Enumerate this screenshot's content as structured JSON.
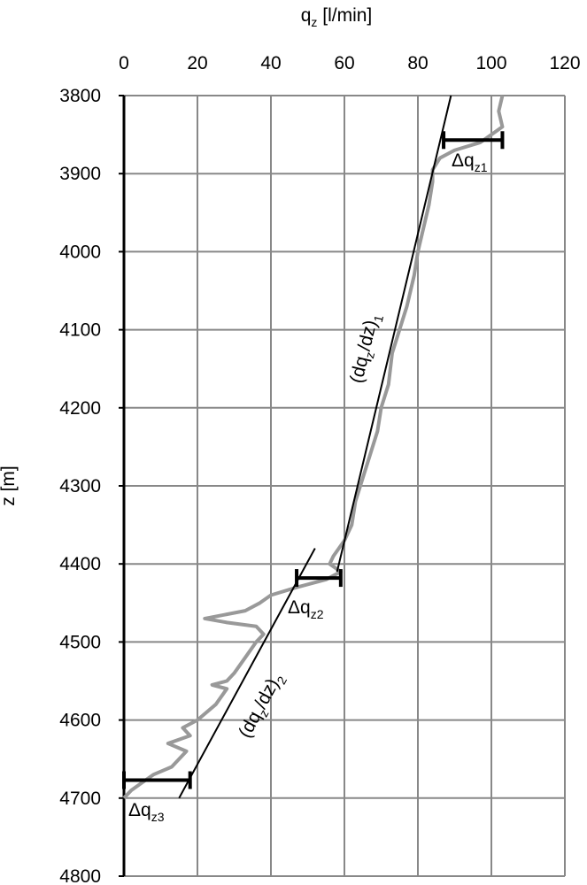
{
  "chart_data": {
    "type": "line",
    "x_title": [
      {
        "text": "q"
      },
      {
        "text": "z",
        "sub": true
      },
      {
        "text": " [l/min]"
      }
    ],
    "y_title": "z [m]",
    "xlim": [
      0,
      120
    ],
    "xticks": [
      0,
      20,
      40,
      60,
      80,
      100,
      120
    ],
    "ylim": [
      3800,
      4800
    ],
    "yticks": [
      3800,
      3900,
      4000,
      4100,
      4200,
      4300,
      4400,
      4500,
      4600,
      4700,
      4800
    ],
    "y_inverted": true,
    "x_axis_position": "top",
    "grid": true,
    "series": [
      {
        "color": "#999999",
        "x": [
          103,
          102,
          103,
          100,
          97,
          90,
          86,
          84,
          84,
          83,
          81,
          80,
          79,
          77,
          75,
          73,
          72,
          70,
          69,
          67,
          65,
          63,
          62,
          60,
          57,
          56,
          59,
          55,
          47,
          40,
          37,
          33,
          22,
          28,
          36,
          38,
          36,
          33,
          30,
          28,
          24,
          28,
          25,
          20,
          16,
          18,
          12,
          17,
          13,
          8,
          5,
          2,
          0
        ],
        "y": [
          3800,
          3820,
          3840,
          3850,
          3860,
          3870,
          3880,
          3895,
          3910,
          3940,
          3980,
          4000,
          4030,
          4070,
          4100,
          4130,
          4170,
          4200,
          4230,
          4260,
          4290,
          4320,
          4350,
          4370,
          4390,
          4400,
          4410,
          4420,
          4430,
          4440,
          4450,
          4460,
          4470,
          4475,
          4480,
          4490,
          4500,
          4520,
          4540,
          4550,
          4555,
          4560,
          4580,
          4600,
          4610,
          4620,
          4630,
          4640,
          4660,
          4670,
          4680,
          4690,
          4700
        ]
      }
    ],
    "fit_lines": [
      {
        "color": "#000000",
        "x": [
          89,
          58
        ],
        "y": [
          3800,
          4410
        ],
        "label": [
          {
            "text": "(dq"
          },
          {
            "text": "z",
            "sub": true
          },
          {
            "text": "/dz)"
          },
          {
            "text": "1",
            "sub": true
          }
        ]
      },
      {
        "color": "#000000",
        "x": [
          52,
          15
        ],
        "y": [
          4380,
          4700
        ],
        "label": [
          {
            "text": "(dq"
          },
          {
            "text": "z",
            "sub": true
          },
          {
            "text": "/dz)"
          },
          {
            "text": "2",
            "sub": true
          }
        ]
      }
    ],
    "error_bars": [
      {
        "z": 3857,
        "q": [
          87,
          103
        ],
        "label": [
          {
            "text": "Δq"
          },
          {
            "text": "z1",
            "sub": true
          }
        ]
      },
      {
        "z": 4418,
        "q": [
          47,
          59
        ],
        "label": [
          {
            "text": "Δq"
          },
          {
            "text": "z2",
            "sub": true
          }
        ]
      },
      {
        "z": 4677,
        "q": [
          0,
          18
        ],
        "label": [
          {
            "text": "Δq"
          },
          {
            "text": "z3",
            "sub": true
          }
        ]
      }
    ]
  }
}
